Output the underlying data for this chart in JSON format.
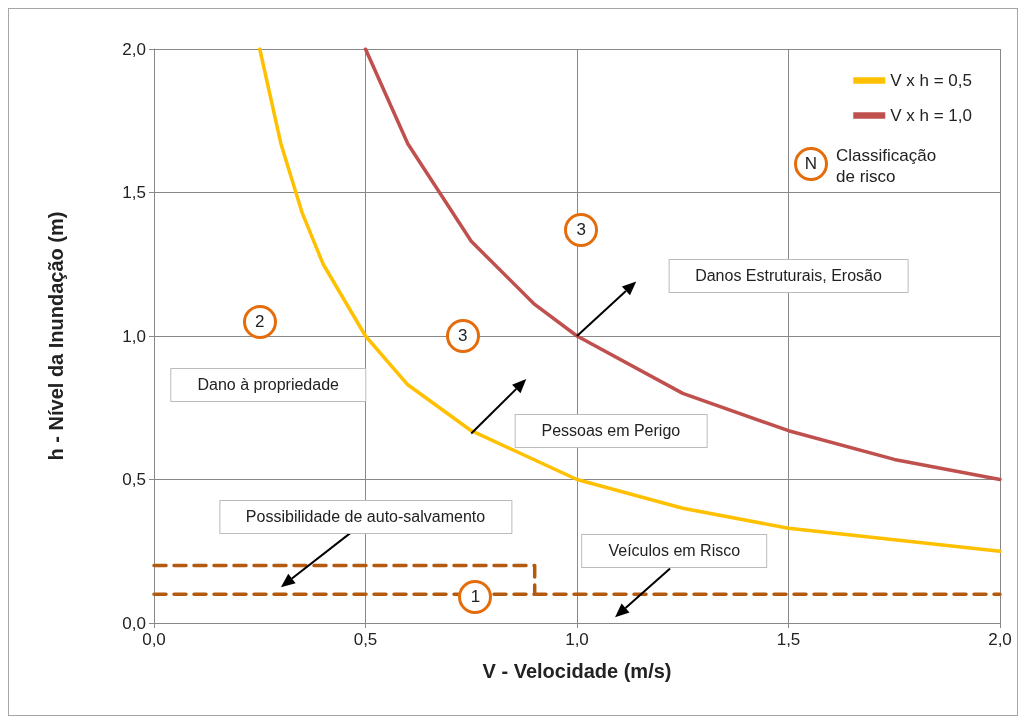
{
  "chart_data": {
    "type": "line",
    "xlabel": "V - Velocidade (m/s)",
    "ylabel": "h - Nível da Inundação (m)",
    "xlim": [
      0,
      2
    ],
    "ylim": [
      0,
      2
    ],
    "xticks": [
      {
        "value": 0,
        "label": "0,0"
      },
      {
        "value": 0.5,
        "label": "0,5"
      },
      {
        "value": 1,
        "label": "1,0"
      },
      {
        "value": 1.5,
        "label": "1,5"
      },
      {
        "value": 2,
        "label": "2,0"
      }
    ],
    "yticks": [
      {
        "value": 0,
        "label": "0,0"
      },
      {
        "value": 0.5,
        "label": "0,5"
      },
      {
        "value": 1,
        "label": "1,0"
      },
      {
        "value": 1.5,
        "label": "1,5"
      },
      {
        "value": 2,
        "label": "2,0"
      }
    ],
    "grid": true,
    "legend": "top right",
    "marker": "none",
    "line_style": "solid",
    "series": [
      {
        "name": "V x h = 0,5",
        "color": "#ffc000",
        "x": [
          0.25,
          0.3,
          0.35,
          0.4,
          0.5,
          0.6,
          0.75,
          1,
          1.25,
          1.5,
          1.75,
          2
        ],
        "values": [
          2,
          1.67,
          1.43,
          1.25,
          1,
          0.83,
          0.67,
          0.5,
          0.4,
          0.33,
          0.29,
          0.25
        ]
      },
      {
        "name": "V x h = 1,0",
        "color": "#c0504d",
        "x": [
          0.5,
          0.6,
          0.75,
          0.9,
          1,
          1.25,
          1.5,
          1.75,
          2
        ],
        "values": [
          2,
          1.67,
          1.33,
          1.11,
          1,
          0.8,
          0.67,
          0.57,
          0.5
        ]
      },
      {
        "color": "#b35a0f",
        "line_style": "dashed",
        "x": [
          0,
          2
        ],
        "values": [
          0.1,
          0.1
        ]
      },
      {
        "color": "#b35a0f",
        "line_style": "dashed",
        "x": [
          0,
          0.9,
          0.9
        ],
        "values": [
          0.2,
          0.2,
          0.1
        ]
      }
    ],
    "annotations": [
      "N",
      "Classificação de risco",
      {
        "text": "3",
        "x": 1.01,
        "y": 1.37
      },
      {
        "text": "2",
        "x": 0.25,
        "y": 1.05
      },
      {
        "text": "3",
        "x": 0.73,
        "y": 1.0
      },
      {
        "text": "1",
        "x": 0.76,
        "y": 0.09
      },
      "Danos Estruturais, Erosão",
      "Pessoas em Perigo",
      "Dano à propriedade",
      "Possibilidade de auto-salvamento",
      "Veículos em Risco"
    ]
  }
}
